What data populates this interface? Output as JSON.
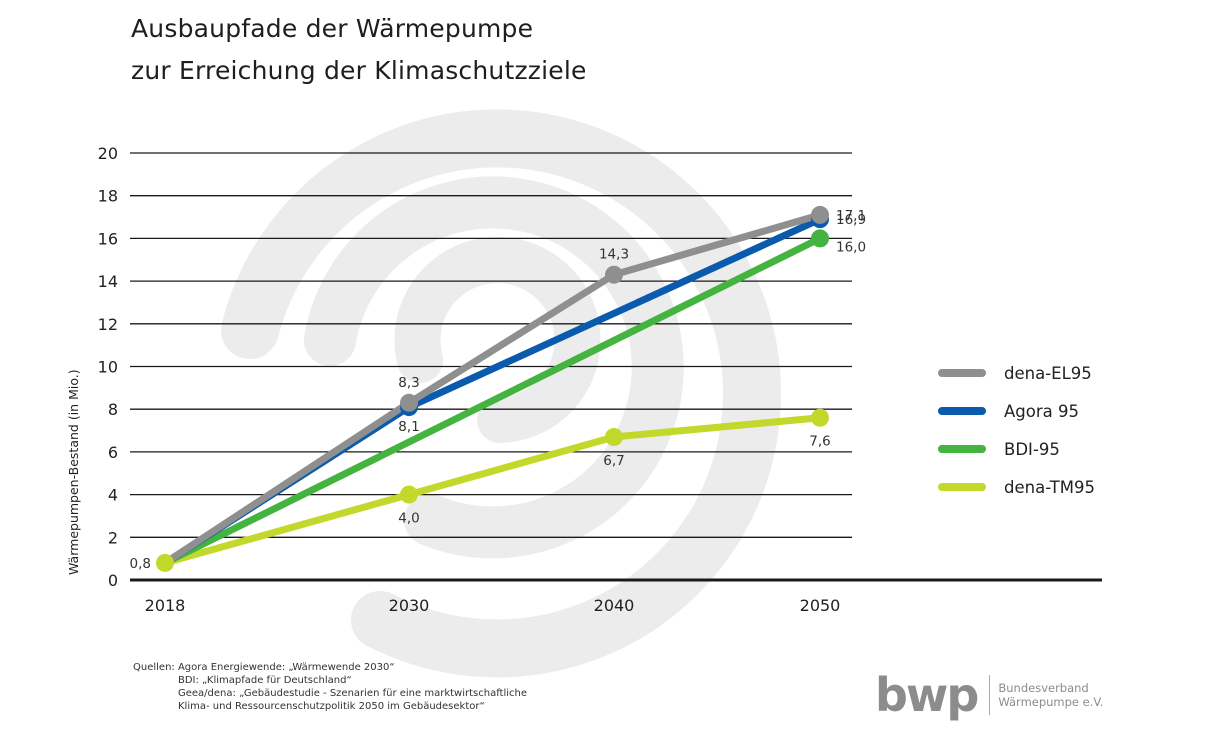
{
  "title_line1": "Ausbaupfade der Wärmepumpe",
  "title_line2": "zur Erreichung der Klimaschutzziele",
  "chart_data": {
    "type": "line",
    "title": "Ausbaupfade der Wärmepumpe zur Erreichung der Klimaschutzziele",
    "xlabel": "",
    "ylabel": "Wärmepumpen-Bestand (in Mio.)",
    "x": [
      2018,
      2030,
      2040,
      2050
    ],
    "x_tick_labels": [
      "2018",
      "2030",
      "2040",
      "2050"
    ],
    "ylim": [
      0,
      20
    ],
    "y_ticks": [
      0,
      2,
      4,
      6,
      8,
      10,
      12,
      14,
      16,
      18,
      20
    ],
    "y_tick_labels": [
      "0",
      "2",
      "4",
      "6",
      "8",
      "10",
      "12",
      "14",
      "16",
      "18",
      "20"
    ],
    "grid": true,
    "legend_position": "right",
    "series": [
      {
        "name": "dena-EL95",
        "color": "#8f8f8f",
        "points": [
          {
            "x": 2018,
            "y": 0.8,
            "marker": false,
            "label": ""
          },
          {
            "x": 2030,
            "y": 8.3,
            "marker": true,
            "label": "8,3"
          },
          {
            "x": 2040,
            "y": 14.3,
            "marker": true,
            "label": "14,3"
          },
          {
            "x": 2050,
            "y": 17.1,
            "marker": true,
            "label": "17,1"
          }
        ]
      },
      {
        "name": "Agora 95",
        "color": "#0a5aad",
        "points": [
          {
            "x": 2018,
            "y": 0.8,
            "marker": false,
            "label": ""
          },
          {
            "x": 2030,
            "y": 8.1,
            "marker": true,
            "label": "8,1"
          },
          {
            "x": 2050,
            "y": 16.9,
            "marker": true,
            "label": "16,9"
          }
        ]
      },
      {
        "name": "BDI-95",
        "color": "#45b33f",
        "points": [
          {
            "x": 2018,
            "y": 0.8,
            "marker": false,
            "label": ""
          },
          {
            "x": 2050,
            "y": 16.0,
            "marker": true,
            "label": "16,0"
          }
        ]
      },
      {
        "name": "dena-TM95",
        "color": "#c2d82a",
        "points": [
          {
            "x": 2018,
            "y": 0.8,
            "marker": true,
            "label": "0,8"
          },
          {
            "x": 2030,
            "y": 4.0,
            "marker": true,
            "label": "4,0"
          },
          {
            "x": 2040,
            "y": 6.7,
            "marker": true,
            "label": "6,7"
          },
          {
            "x": 2050,
            "y": 7.6,
            "marker": true,
            "label": "7,6"
          }
        ]
      }
    ]
  },
  "legend": [
    {
      "label": "dena-EL95",
      "color": "#8f8f8f"
    },
    {
      "label": "Agora 95",
      "color": "#0a5aad"
    },
    {
      "label": "BDI-95",
      "color": "#45b33f"
    },
    {
      "label": "dena-TM95",
      "color": "#c2d82a"
    }
  ],
  "sources": {
    "prefix": "Quellen:",
    "line1": "Agora Energiewende: „Wärmewende 2030“",
    "line2": "BDI: „Klimapfade für Deutschland“",
    "line3": "Geea/dena: „Gebäudestudie - Szenarien für eine marktwirtschaftliche",
    "line4": "Klima- und Ressourcenschutzpolitik 2050 im Gebäudesektor“"
  },
  "logo": {
    "mark": "bwp",
    "line1": "Bundesverband",
    "line2": "Wärmepumpe e.V."
  },
  "colors": {
    "spiral": "#ececec",
    "grid": "#1a1a1a",
    "text": "#222222",
    "logo": "#8c8c8c"
  }
}
